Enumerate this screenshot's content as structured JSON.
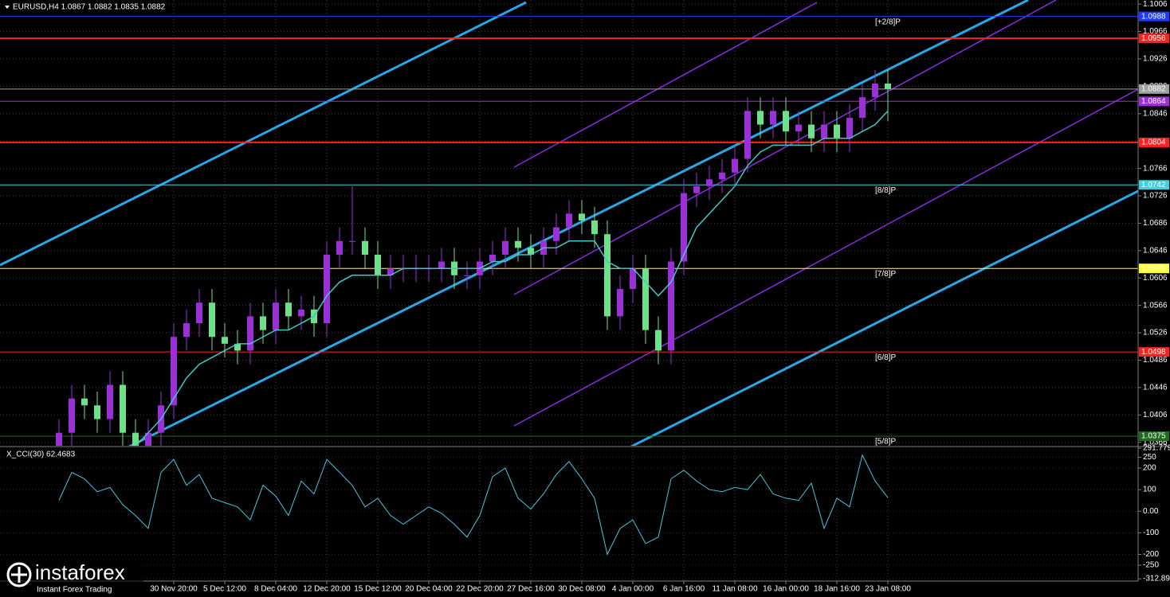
{
  "chart_data": [
    {
      "type": "candlestick",
      "title": "EURUSD,H4  1.0867 1.0882 1.0835 1.0882",
      "categories": [
        null,
        null,
        null,
        null,
        null,
        null,
        null,
        null,
        null,
        "30 Nov 20:00",
        null,
        null,
        null,
        "5 Dec 12:00",
        null,
        null,
        null,
        "8 Dec 04:00",
        null,
        null,
        null,
        "12 Dec 20:00",
        null,
        null,
        null,
        "15 Dec 12:00",
        null,
        null,
        null,
        "20 Dec 04:00",
        null,
        null,
        null,
        "22 Dec 20:00",
        null,
        null,
        null,
        "27 Dec 16:00",
        null,
        null,
        null,
        "30 Dec 08:00",
        null,
        null,
        null,
        "4 Jan 00:00",
        null,
        null,
        null,
        "6 Jan 16:00",
        null,
        null,
        null,
        "11 Jan 08:00",
        null,
        null,
        null,
        "16 Jan 00:00",
        null,
        null,
        null,
        "18 Jan 16:00",
        null,
        null,
        null,
        "23 Jan 08:00"
      ],
      "open": [
        1.036,
        1.038,
        1.043,
        1.042,
        1.04,
        1.045,
        1.038,
        1.036,
        1.038,
        1.042,
        1.052,
        1.054,
        1.057,
        1.052,
        1.051,
        1.05,
        1.055,
        1.053,
        1.057,
        1.055,
        1.056,
        1.054,
        1.064,
        1.066,
        1.066,
        1.064,
        1.061,
        1.062,
        1.062,
        1.062,
        1.062,
        1.063,
        1.061,
        1.061,
        1.063,
        1.064,
        1.066,
        1.065,
        1.064,
        1.066,
        1.068,
        1.07,
        1.069,
        1.067,
        1.055,
        1.059,
        1.062,
        1.053,
        1.05,
        1.063,
        1.073,
        1.074,
        1.075,
        1.076,
        1.078,
        1.085,
        1.083,
        1.085,
        1.082,
        1.083,
        1.081,
        1.083,
        1.081,
        1.084,
        1.087,
        1.089
      ],
      "high": [
        1.04,
        1.045,
        1.045,
        1.044,
        1.047,
        1.047,
        1.04,
        1.04,
        1.044,
        1.054,
        1.056,
        1.059,
        1.059,
        1.054,
        1.053,
        1.057,
        1.057,
        1.059,
        1.059,
        1.058,
        1.058,
        1.066,
        1.068,
        1.074,
        1.068,
        1.066,
        1.064,
        1.064,
        1.064,
        1.064,
        1.065,
        1.065,
        1.063,
        1.065,
        1.066,
        1.068,
        1.068,
        1.067,
        1.068,
        1.07,
        1.072,
        1.072,
        1.071,
        1.069,
        1.061,
        1.064,
        1.064,
        1.055,
        1.065,
        1.075,
        1.076,
        1.077,
        1.078,
        1.08,
        1.087,
        1.087,
        1.087,
        1.087,
        1.085,
        1.085,
        1.085,
        1.085,
        1.086,
        1.089,
        1.091,
        1.091
      ],
      "low": [
        1.034,
        1.036,
        1.04,
        1.038,
        1.038,
        1.036,
        1.034,
        1.034,
        1.036,
        1.04,
        1.05,
        1.052,
        1.05,
        1.049,
        1.048,
        1.048,
        1.051,
        1.051,
        1.053,
        1.053,
        1.052,
        1.052,
        1.062,
        1.064,
        1.062,
        1.059,
        1.059,
        1.06,
        1.06,
        1.06,
        1.06,
        1.059,
        1.059,
        1.059,
        1.061,
        1.062,
        1.063,
        1.062,
        1.062,
        1.064,
        1.066,
        1.067,
        1.065,
        1.053,
        1.053,
        1.057,
        1.051,
        1.048,
        1.048,
        1.061,
        1.071,
        1.072,
        1.073,
        1.074,
        1.076,
        1.081,
        1.081,
        1.08,
        1.08,
        1.079,
        1.079,
        1.079,
        1.079,
        1.082,
        1.085,
        1.0835
      ],
      "close": [
        1.038,
        1.043,
        1.042,
        1.04,
        1.045,
        1.038,
        1.036,
        1.038,
        1.042,
        1.052,
        1.054,
        1.057,
        1.052,
        1.051,
        1.05,
        1.055,
        1.053,
        1.057,
        1.055,
        1.056,
        1.054,
        1.064,
        1.066,
        1.066,
        1.064,
        1.061,
        1.062,
        1.062,
        1.062,
        1.062,
        1.063,
        1.061,
        1.061,
        1.063,
        1.064,
        1.066,
        1.065,
        1.064,
        1.066,
        1.068,
        1.07,
        1.069,
        1.067,
        1.055,
        1.059,
        1.062,
        1.053,
        1.05,
        1.063,
        1.073,
        1.074,
        1.075,
        1.076,
        1.078,
        1.085,
        1.083,
        1.085,
        1.082,
        1.083,
        1.081,
        1.083,
        1.081,
        1.084,
        1.087,
        1.089,
        1.0882
      ],
      "up_color": "#9b30d9",
      "down_color": "#6fe08a",
      "ma": {
        "color": "#40c8c8",
        "values": [
          null,
          null,
          null,
          null,
          null,
          null,
          1.036,
          1.038,
          1.04,
          1.043,
          1.046,
          1.048,
          1.049,
          1.05,
          1.051,
          1.051,
          1.052,
          1.053,
          1.053,
          1.054,
          1.055,
          1.058,
          1.06,
          1.061,
          1.061,
          1.061,
          1.061,
          1.062,
          1.062,
          1.062,
          1.062,
          1.062,
          1.062,
          1.062,
          1.063,
          1.063,
          1.064,
          1.064,
          1.065,
          1.065,
          1.066,
          1.066,
          1.066,
          1.063,
          1.062,
          1.062,
          1.06,
          1.058,
          1.06,
          1.064,
          1.068,
          1.07,
          1.072,
          1.074,
          1.077,
          1.079,
          1.08,
          1.08,
          1.08,
          1.08,
          1.081,
          1.081,
          1.081,
          1.082,
          1.083,
          1.085
        ]
      },
      "ylim": [
        1.0361,
        1.1012
      ],
      "yticks": [
        1.1006,
        1.0966,
        1.0926,
        1.0886,
        1.0846,
        1.0806,
        1.0766,
        1.0726,
        1.0686,
        1.0646,
        1.0606,
        1.0566,
        1.0526,
        1.0486,
        1.0446,
        1.0406,
        1.0366
      ],
      "grid": true,
      "levels": [
        {
          "value": 1.0988,
          "label": "1.0988",
          "color": "#1e3cff",
          "text_color": "#ffffff",
          "width": 1
        },
        {
          "value": 1.0956,
          "label": "1.0956",
          "color": "#ff2020",
          "text_color": "#ffffff",
          "width": 2
        },
        {
          "value": 1.0882,
          "label": "1.0882",
          "color": "#a0a0a0",
          "text_color": "#000000",
          "width": 1
        },
        {
          "value": 1.0864,
          "label": "1.0864",
          "color": "#9b30d9",
          "text_color": "#ffffff",
          "width": 1
        },
        {
          "value": 1.0804,
          "label": "1.0804",
          "color": "#ff2020",
          "text_color": "#ffffff",
          "width": 2
        },
        {
          "value": 1.0742,
          "label": "1.0742",
          "color": "#40d0e0",
          "text_color": "#000000",
          "width": 1
        },
        {
          "value": 1.062,
          "label": "1.0620",
          "color": "#ffff40",
          "text_color": "#000000",
          "width": 1
        },
        {
          "value": 1.0498,
          "label": "1.0498",
          "color": "#ff2020",
          "text_color": "#ffffff",
          "width": 1
        },
        {
          "value": 1.0375,
          "label": "1.0375",
          "color": "#1f6b1f",
          "text_color": "#ffffff",
          "width": 1
        }
      ],
      "murrey": [
        {
          "label": "[+2/8]P",
          "value": 1.0988,
          "color": "#1e3cff"
        },
        {
          "label": "[8/8]P",
          "value": 1.0742,
          "color": "#40d0e0"
        },
        {
          "label": "[7/8]P",
          "value": 1.062,
          "color": "#ffff40"
        },
        {
          "label": "[6/8]P",
          "value": 1.0498,
          "color": "#ff2020"
        },
        {
          "label": "[5/8]P",
          "value": 1.0375,
          "color": "#1f6b1f"
        }
      ]
    },
    {
      "type": "line",
      "title": "X_CCI(30) 62.4683",
      "color": "#40c8e0",
      "values": [
        50,
        180,
        150,
        90,
        110,
        30,
        -20,
        -80,
        180,
        240,
        120,
        170,
        60,
        40,
        20,
        -40,
        120,
        70,
        -20,
        140,
        80,
        240,
        180,
        120,
        20,
        60,
        -20,
        -60,
        -20,
        20,
        -10,
        -60,
        -120,
        -20,
        160,
        200,
        60,
        10,
        80,
        170,
        230,
        150,
        60,
        -200,
        -80,
        -40,
        -150,
        -120,
        150,
        190,
        140,
        100,
        90,
        110,
        100,
        170,
        80,
        60,
        50,
        130,
        -80,
        60,
        20,
        260,
        140,
        62.4683
      ],
      "ylim": [
        -320,
        292
      ],
      "yticks": [
        291.7799,
        250,
        200,
        100,
        {
          "value": 0,
          "label": "0.00"
        },
        -100,
        -200,
        -250,
        -312.898
      ]
    }
  ],
  "watermark": {
    "brand": "instaforex",
    "tagline": "Instant Forex Trading"
  }
}
